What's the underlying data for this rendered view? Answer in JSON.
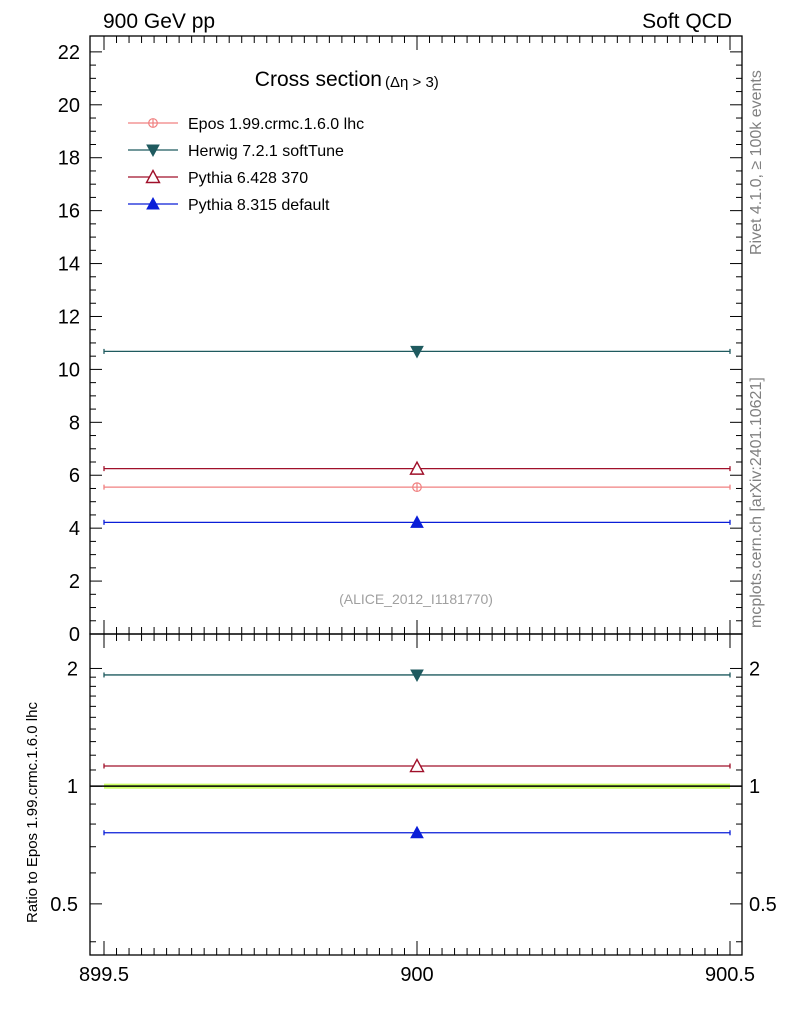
{
  "header": {
    "left": "900 GeV pp",
    "right": "Soft QCD"
  },
  "side_labels": {
    "rivet": "Rivet 4.1.0, ≥ 100k events",
    "mcplots": "mcplots.cern.ch [arXiv:2401.10621]"
  },
  "colors": {
    "epos": "#f08080",
    "herwig": "#1f5a5f",
    "pythia6": "#a0102a",
    "pythia8": "#0a1ed8",
    "ref_band": "#ccff66"
  },
  "chart_data": [
    {
      "type": "scatter",
      "panel": "main",
      "title_main": "Cross section",
      "title_sub": "(Δη > 3)",
      "annotation": "(ALICE_2012_I1181770)",
      "xlim": [
        899.5,
        900.5
      ],
      "ylim": [
        0,
        22.6
      ],
      "yticks": [
        0,
        2,
        4,
        6,
        8,
        10,
        12,
        14,
        16,
        18,
        20,
        22
      ],
      "ytick_labels": [
        "0",
        "2",
        "4",
        "6",
        "8",
        "10",
        "12",
        "14",
        "16",
        "18",
        "20",
        "22"
      ],
      "xlabel": "",
      "ylabel": "",
      "legend_position": "top-left",
      "series": [
        {
          "id": "epos",
          "name": "Epos 1.99.crmc.1.6.0 lhc",
          "marker": "cross-circle",
          "x": [
            900
          ],
          "xerr": [
            [
              899.5,
              900.5
            ]
          ],
          "y": [
            5.55
          ]
        },
        {
          "id": "herwig",
          "name": "Herwig 7.2.1 softTune",
          "marker": "triangle-down",
          "x": [
            900
          ],
          "xerr": [
            [
              899.5,
              900.5
            ]
          ],
          "y": [
            10.68
          ]
        },
        {
          "id": "pythia6",
          "name": "Pythia 6.428 370",
          "marker": "triangle-open",
          "x": [
            900
          ],
          "xerr": [
            [
              899.5,
              900.5
            ]
          ],
          "y": [
            6.25
          ]
        },
        {
          "id": "pythia8",
          "name": "Pythia 8.315 default",
          "marker": "triangle-up",
          "x": [
            900
          ],
          "xerr": [
            [
              899.5,
              900.5
            ]
          ],
          "y": [
            4.22
          ]
        }
      ]
    },
    {
      "type": "scatter",
      "panel": "ratio",
      "ylabel": "Ratio to Epos 1.99.crmc.1.6.0 lhc",
      "yscale": "log",
      "xlim": [
        899.5,
        900.5
      ],
      "ylim": [
        0.37,
        2.45
      ],
      "yticks": [
        0.5,
        1,
        2
      ],
      "ytick_labels": [
        "0.5",
        "1",
        "2"
      ],
      "xticks": [
        899.5,
        900,
        900.5
      ],
      "xtick_labels": [
        "899.5",
        "900",
        "900.5"
      ],
      "reference_band": [
        0.985,
        1.015
      ],
      "series": [
        {
          "id": "herwig",
          "x": [
            900
          ],
          "y": [
            1.925
          ]
        },
        {
          "id": "pythia6",
          "x": [
            900
          ],
          "y": [
            1.126
          ]
        },
        {
          "id": "pythia8",
          "x": [
            900
          ],
          "y": [
            0.76
          ]
        }
      ]
    }
  ]
}
